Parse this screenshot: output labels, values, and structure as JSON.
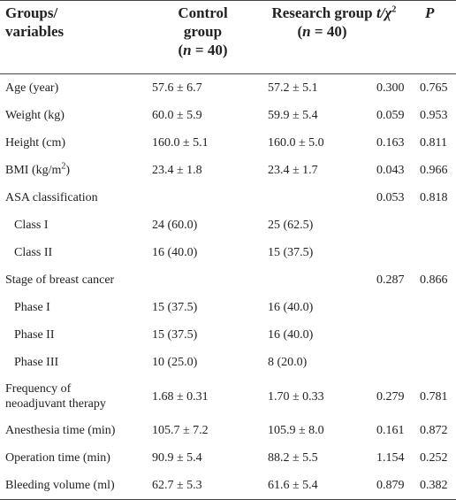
{
  "header": {
    "col0": [
      "Groups/",
      "variables"
    ],
    "col1": [
      "Control",
      "group",
      "(",
      "n",
      " = 40)"
    ],
    "col2": [
      "Research group",
      "(",
      "n",
      " = 40)"
    ],
    "col3": [
      "t",
      "/χ",
      "2"
    ],
    "col4": "P"
  },
  "rows": [
    {
      "label": "Age (year)",
      "control": "57.6 ± 6.7",
      "research": "57.2 ± 5.1",
      "stat": "0.300",
      "p": "0.765"
    },
    {
      "label": "Weight (kg)",
      "control": "60.0 ± 5.9",
      "research": "59.9 ± 5.4",
      "stat": "0.059",
      "p": "0.953"
    },
    {
      "label": "Height (cm)",
      "control": "160.0 ± 5.1",
      "research": "160.0 ± 5.0",
      "stat": "0.163",
      "p": "0.811"
    },
    {
      "label": [
        "BMI (kg/m",
        "2",
        ")"
      ],
      "control": "23.4 ± 1.8",
      "research": "23.4 ± 1.7",
      "stat": "0.043",
      "p": "0.966"
    },
    {
      "label": "ASA classification",
      "stat": "0.053",
      "p": "0.818",
      "subrows": [
        {
          "label": "Class I",
          "control": "24 (60.0)",
          "research": "25 (62.5)"
        },
        {
          "label": "Class II",
          "control": "16 (40.0)",
          "research": "15 (37.5)"
        }
      ]
    },
    {
      "label": "Stage of breast cancer",
      "stat": "0.287",
      "p": "0.866",
      "subrows": [
        {
          "label": "Phase I",
          "control": "15 (37.5)",
          "research": "16 (40.0)"
        },
        {
          "label": "Phase II",
          "control": "15 (37.5)",
          "research": "16 (40.0)"
        },
        {
          "label": "Phase III",
          "control": "10 (25.0)",
          "research": "8 (20.0)"
        }
      ]
    },
    {
      "label": "Frequency of neoadjuvant therapy",
      "control": "1.68 ± 0.31",
      "research": "1.70 ± 0.33",
      "stat": "0.279",
      "p": "0.781"
    },
    {
      "label": "Anesthesia time (min)",
      "control": "105.7 ± 7.2",
      "research": "105.9 ± 8.0",
      "stat": "0.161",
      "p": "0.872"
    },
    {
      "label": "Operation time (min)",
      "control": "90.9 ± 5.4",
      "research": "88.2 ± 5.5",
      "stat": "1.154",
      "p": "0.252"
    },
    {
      "label": "Bleeding volume (ml)",
      "control": "62.7 ± 5.3",
      "research": "61.6 ± 5.4",
      "stat": "0.879",
      "p": "0.382"
    }
  ]
}
